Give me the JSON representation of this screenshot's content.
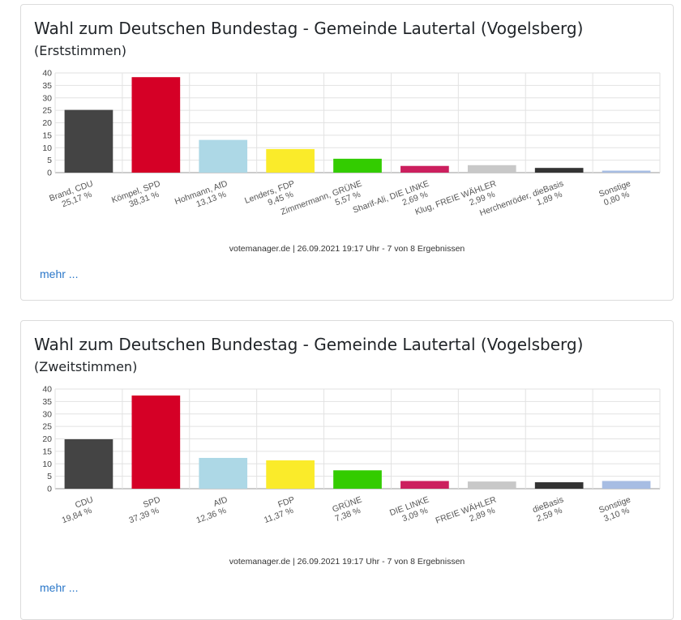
{
  "charts": [
    {
      "title": "Wahl zum Deutschen Bundestag - Gemeinde Lautertal (Vogelsberg)",
      "subtitle": "(Erststimmen)",
      "source": "votemanager.de | 26.09.2021 19:17 Uhr - 7 von 8 Ergebnissen",
      "more_label": "mehr ...",
      "chart_data": {
        "type": "bar",
        "categories": [
          "Brand, CDU",
          "Kömpel, SPD",
          "Hohmann, AfD",
          "Lenders, FDP",
          "Zimmermann, GRÜNE",
          "Sharif-Ali, DIE LINKE",
          "Klug, FREIE WÄHLER",
          "Herchenröder, dieBasis",
          "Sonstige"
        ],
        "value_labels": [
          "25,17 %",
          "38,31 %",
          "13,13 %",
          "9,45 %",
          "5,57 %",
          "2,69 %",
          "2,99 %",
          "1,89 %",
          "0,80 %"
        ],
        "values": [
          25.17,
          38.31,
          13.13,
          9.45,
          5.57,
          2.69,
          2.99,
          1.89,
          0.8
        ],
        "colors": [
          "#444444",
          "#d50026",
          "#add8e6",
          "#faeb2a",
          "#33cc00",
          "#cc1f5e",
          "#c8c8c8",
          "#333333",
          "#a7bde3"
        ],
        "ylim": [
          0,
          40
        ],
        "yticks": [
          0,
          5,
          10,
          15,
          20,
          25,
          30,
          35,
          40
        ],
        "grid": true
      }
    },
    {
      "title": "Wahl zum Deutschen Bundestag - Gemeinde Lautertal (Vogelsberg)",
      "subtitle": "(Zweitstimmen)",
      "source": "votemanager.de | 26.09.2021 19:17 Uhr - 7 von 8 Ergebnissen",
      "more_label": "mehr ...",
      "chart_data": {
        "type": "bar",
        "categories": [
          "CDU",
          "SPD",
          "AfD",
          "FDP",
          "GRÜNE",
          "DIE LINKE",
          "FREIE WÄHLER",
          "dieBasis",
          "Sonstige"
        ],
        "value_labels": [
          "19,84 %",
          "37,39 %",
          "12,36 %",
          "11,37 %",
          "7,38 %",
          "3,09 %",
          "2,89 %",
          "2,59 %",
          "3,10 %"
        ],
        "values": [
          19.84,
          37.39,
          12.36,
          11.37,
          7.38,
          3.09,
          2.89,
          2.59,
          3.1
        ],
        "colors": [
          "#444444",
          "#d50026",
          "#add8e6",
          "#faeb2a",
          "#33cc00",
          "#cc1f5e",
          "#c8c8c8",
          "#333333",
          "#a7bde3"
        ],
        "ylim": [
          0,
          40
        ],
        "yticks": [
          0,
          5,
          10,
          15,
          20,
          25,
          30,
          35,
          40
        ],
        "grid": true
      }
    }
  ]
}
